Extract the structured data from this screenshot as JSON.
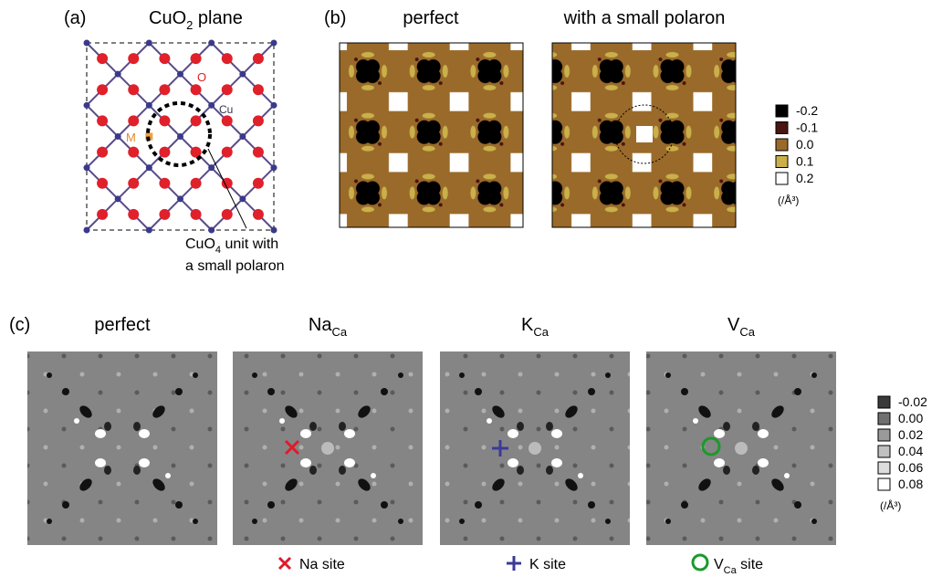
{
  "panel_a": {
    "label": "(a)",
    "title": {
      "main": "CuO",
      "sub": "2",
      "rest": " plane"
    },
    "atom_o": "O",
    "atom_cu": "Cu",
    "atom_m": "M",
    "note": {
      "main": "CuO",
      "sub": "4",
      "rest": " unit with",
      "line2": "a small polaron"
    }
  },
  "panel_b": {
    "label": "(b)",
    "titles": [
      "perfect",
      "with a small polaron"
    ],
    "legend": {
      "labels": [
        "-0.2",
        "-0.1",
        "0.0",
        "0.1",
        "0.2"
      ],
      "colors": [
        "#000000",
        "#4a1410",
        "#9a6a2a",
        "#c9b04a",
        "#ffffff"
      ],
      "unit": "(/Å³)"
    }
  },
  "panel_c": {
    "label": "(c)",
    "titles": [
      {
        "main": "perfect"
      },
      {
        "main": "Na",
        "sub": "Ca"
      },
      {
        "main": "K",
        "sub": "Ca"
      },
      {
        "main": "V",
        "sub": "Ca"
      }
    ],
    "legend": {
      "labels": [
        "-0.02",
        "0.00",
        "0.02",
        "0.04",
        "0.06",
        "0.08"
      ],
      "colors": [
        "#3a3a3a",
        "#707070",
        "#9a9a9a",
        "#c0c0c0",
        "#dddddd",
        "#ffffff"
      ],
      "unit": "(/Å³)"
    },
    "sites": [
      {
        "main": "Na site"
      },
      {
        "main": "K site"
      },
      {
        "main": "V",
        "sub": "Ca",
        "rest": " site"
      }
    ]
  }
}
